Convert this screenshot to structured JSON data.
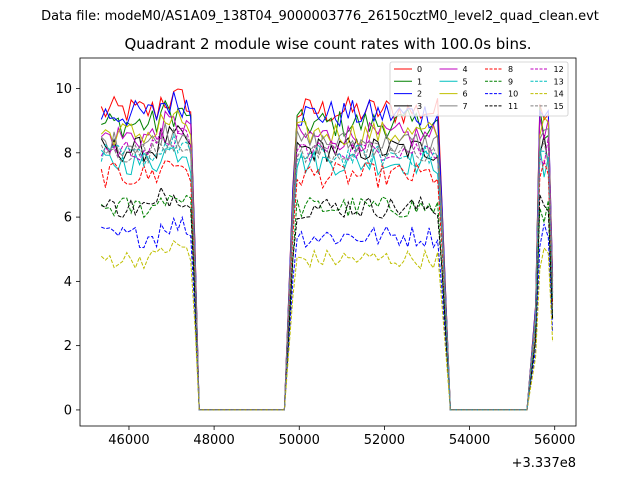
{
  "suptitle": "Data file: modeM0/AS1A09_138T04_9000003776_26150cztM0_level2_quad_clean.evt",
  "chart_data": {
    "type": "line",
    "title": "Quadrant 2 module wise count rates with 100.0s bins.",
    "xlabel": "",
    "ylabel": "",
    "x_offset_label": "+3.337e8",
    "xlim": [
      44850,
      56500
    ],
    "ylim": [
      -0.5,
      10.95
    ],
    "xticks": [
      46000,
      48000,
      50000,
      52000,
      54000,
      56000
    ],
    "xtick_labels": [
      "46000",
      "48000",
      "50000",
      "52000",
      "54000",
      "56000"
    ],
    "yticks": [
      0,
      2,
      4,
      6,
      8,
      10
    ],
    "ytick_labels": [
      "0",
      "2",
      "4",
      "6",
      "8",
      "10"
    ],
    "grid": false,
    "legend": {
      "placement": "top-right",
      "columns": 4
    },
    "x_start": 45350,
    "bin_width": 100,
    "segments": [
      {
        "on_start": 45350,
        "on_end": 47550,
        "off_start": 47650,
        "off_end": 49650
      },
      {
        "on_start": 49850,
        "on_end": 53350,
        "off_start": 53550,
        "off_end": 55350
      },
      {
        "on_start": 55550,
        "on_end": 55950,
        "off_start": null,
        "off_end": null
      }
    ],
    "series": [
      {
        "name": "0",
        "color": "#ff0000",
        "dash": "solid",
        "mean": 9.3,
        "noise": 0.45
      },
      {
        "name": "1",
        "color": "#008000",
        "dash": "solid",
        "mean": 8.9,
        "noise": 0.45
      },
      {
        "name": "2",
        "color": "#0000ff",
        "dash": "solid",
        "mean": 9.2,
        "noise": 0.45
      },
      {
        "name": "3",
        "color": "#000000",
        "dash": "solid",
        "mean": 8.1,
        "noise": 0.4
      },
      {
        "name": "4",
        "color": "#bf00bf",
        "dash": "solid",
        "mean": 8.5,
        "noise": 0.45
      },
      {
        "name": "5",
        "color": "#00bfbf",
        "dash": "solid",
        "mean": 7.7,
        "noise": 0.4
      },
      {
        "name": "6",
        "color": "#bfbf00",
        "dash": "solid",
        "mean": 8.6,
        "noise": 0.4
      },
      {
        "name": "7",
        "color": "#808080",
        "dash": "solid",
        "mean": 8.3,
        "noise": 0.4
      },
      {
        "name": "8",
        "color": "#ff0000",
        "dash": "dashed",
        "mean": 7.3,
        "noise": 0.4
      },
      {
        "name": "9",
        "color": "#008000",
        "dash": "dashed",
        "mean": 6.3,
        "noise": 0.35
      },
      {
        "name": "10",
        "color": "#0000ff",
        "dash": "dashed",
        "mean": 5.4,
        "noise": 0.35
      },
      {
        "name": "11",
        "color": "#000000",
        "dash": "dashed",
        "mean": 6.3,
        "noise": 0.35
      },
      {
        "name": "12",
        "color": "#bf00bf",
        "dash": "dashed",
        "mean": 8.1,
        "noise": 0.35
      },
      {
        "name": "13",
        "color": "#00bfbf",
        "dash": "dashed",
        "mean": 7.9,
        "noise": 0.35
      },
      {
        "name": "14",
        "color": "#bfbf00",
        "dash": "dashed",
        "mean": 4.7,
        "noise": 0.3
      },
      {
        "name": "15",
        "color": "#808080",
        "dash": "dashed",
        "mean": 8.0,
        "noise": 0.35
      }
    ]
  }
}
